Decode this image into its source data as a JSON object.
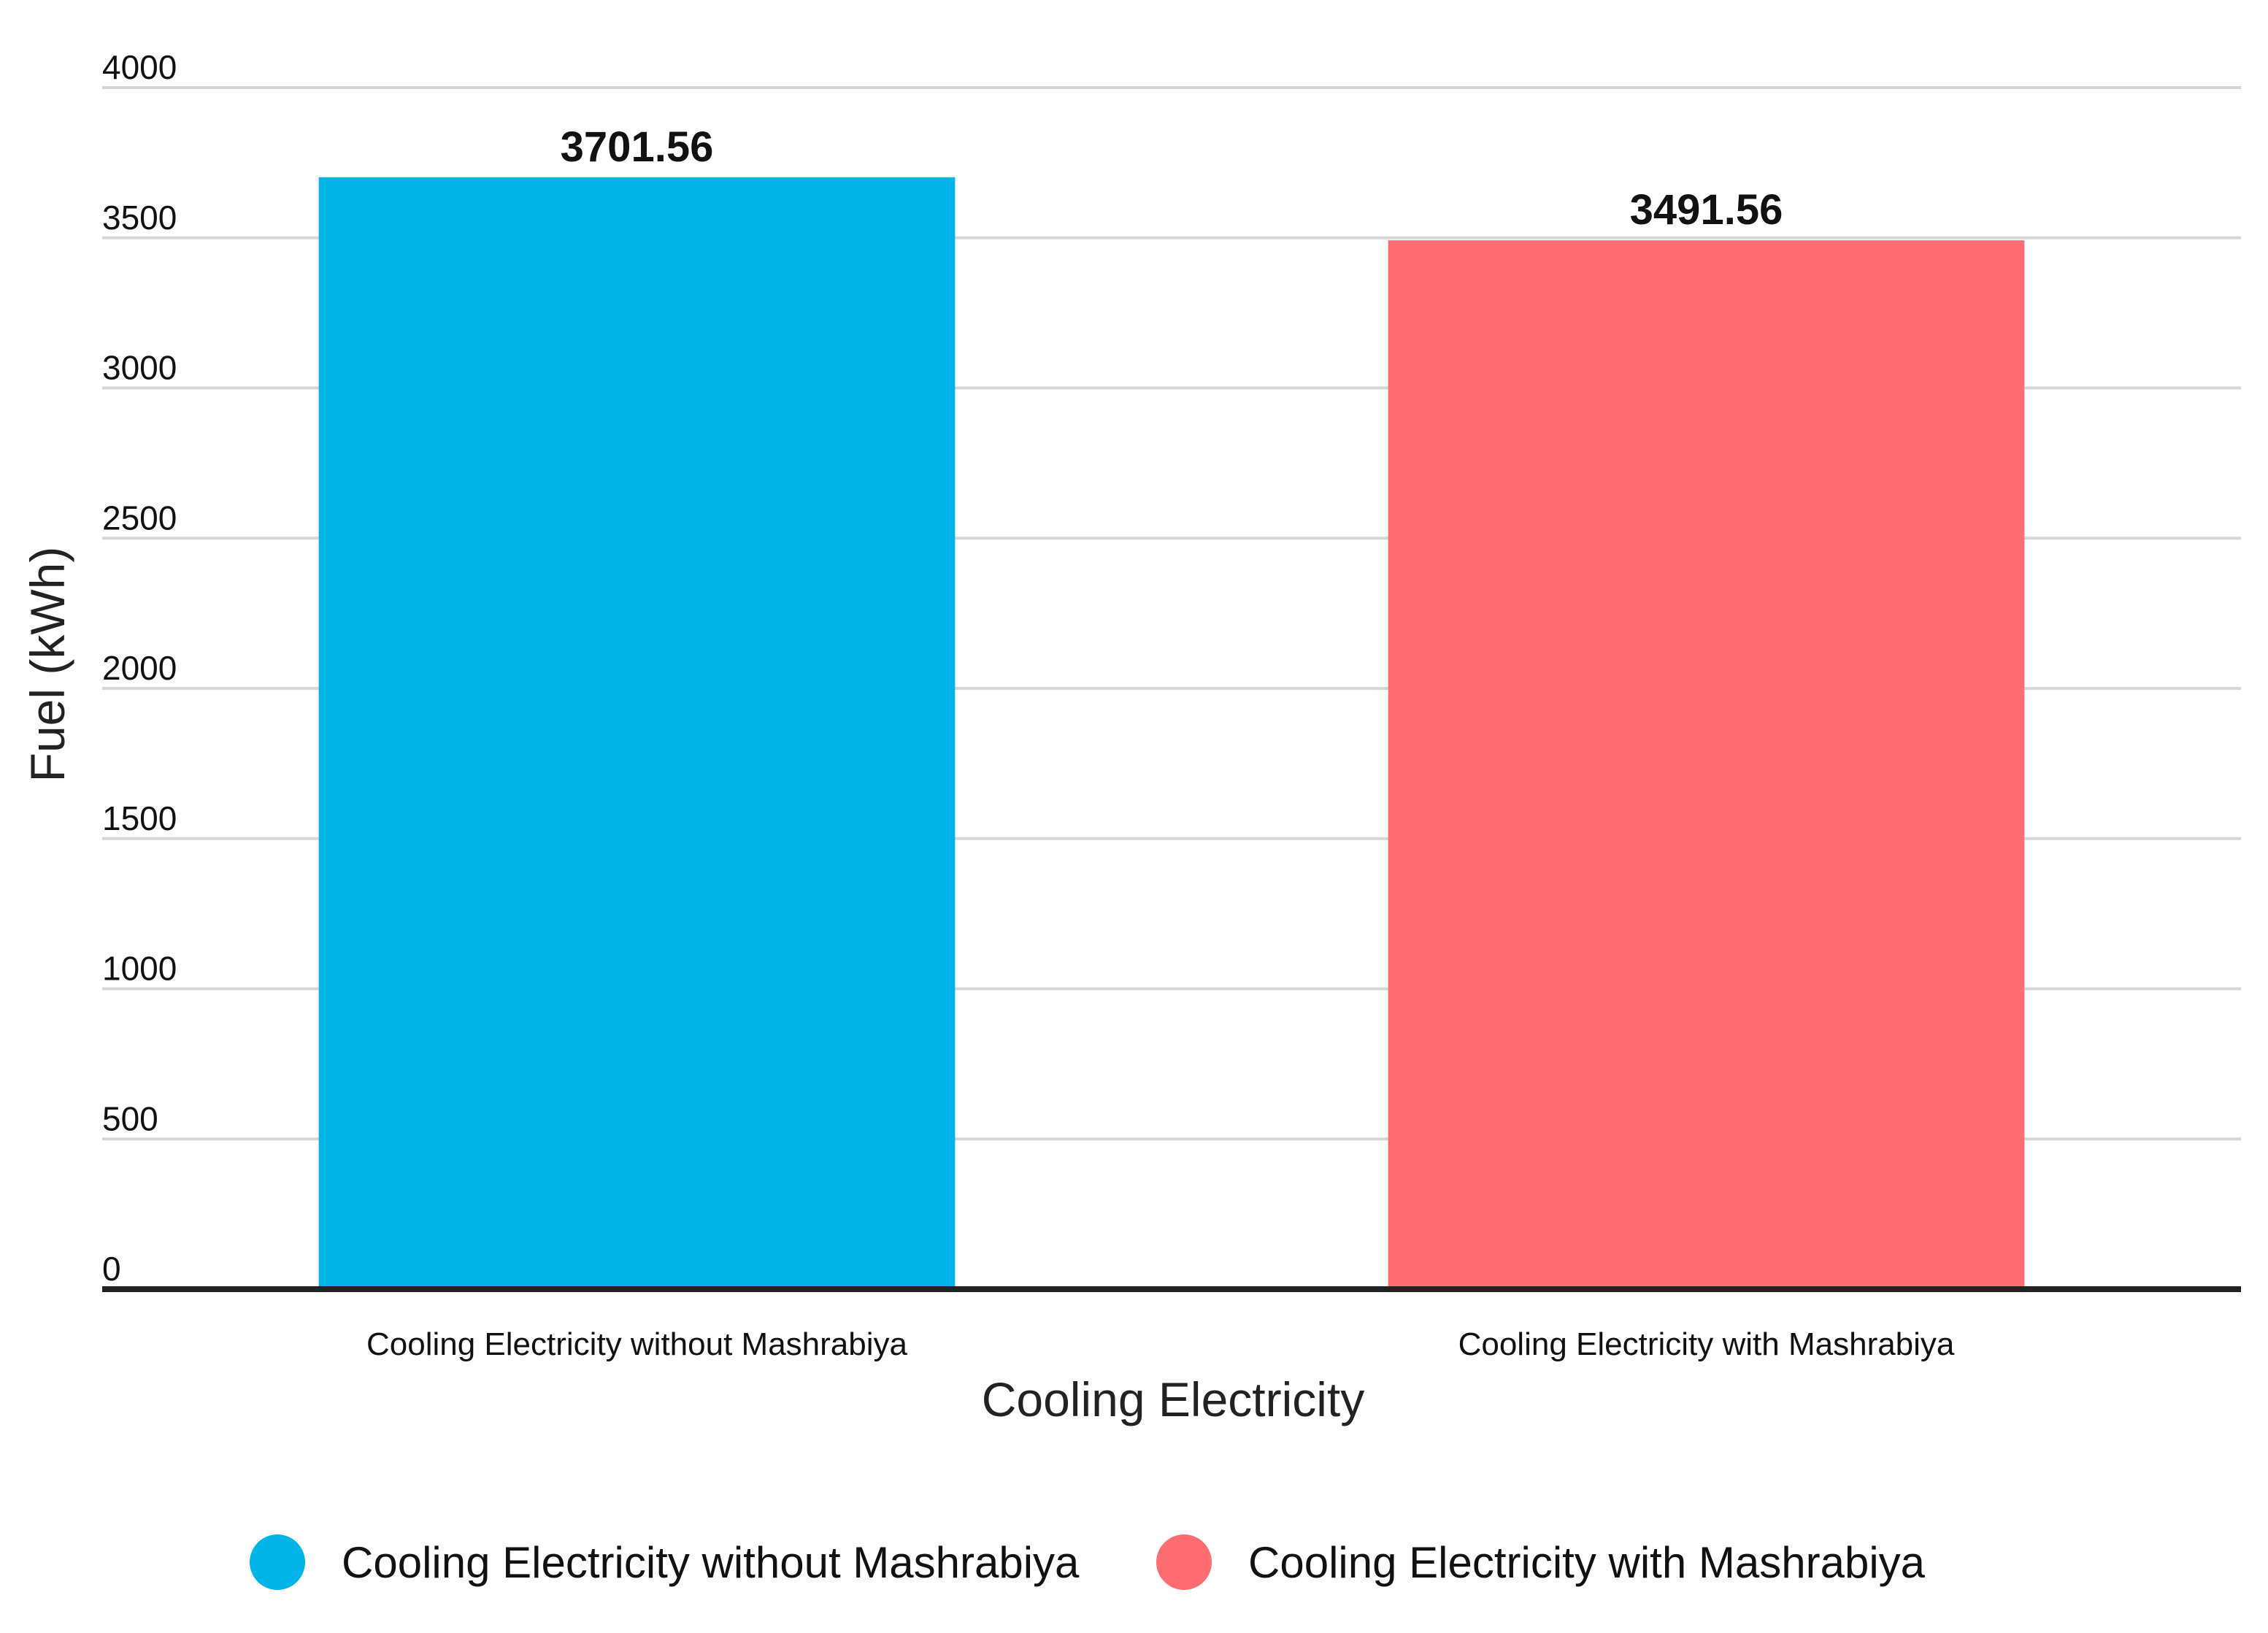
{
  "chart_data": {
    "type": "bar",
    "title": "",
    "categories": [
      "Cooling Electricity without Mashrabiya",
      "Cooling Electricity with Mashrabiya"
    ],
    "values": [
      3701.56,
      3491.56
    ],
    "value_labels": [
      "3701.56",
      "3491.56"
    ],
    "colors": [
      "#00b4e8",
      "#ff6d73"
    ],
    "xlabel": "Cooling Electricity",
    "ylabel": "Fuel (kWh)",
    "ylim": [
      0,
      4000
    ],
    "yticks": [
      0,
      500,
      1000,
      1500,
      2000,
      2500,
      3000,
      3500,
      4000
    ],
    "ytick_labels": [
      "0",
      "500",
      "1000",
      "1500",
      "2000",
      "2500",
      "3000",
      "3500",
      "4000"
    ],
    "grid": true,
    "legend": {
      "position": "bottom",
      "entries": [
        "Cooling Electricity without Mashrabiya",
        "Cooling Electricity with Mashrabiya"
      ]
    }
  }
}
